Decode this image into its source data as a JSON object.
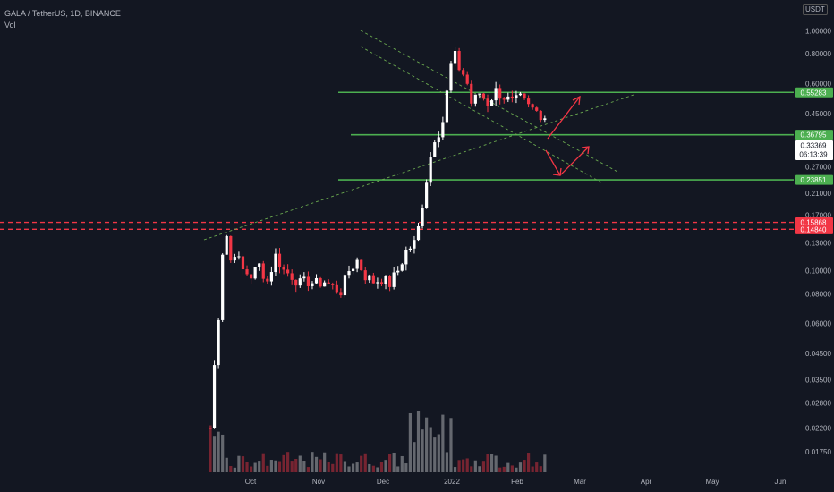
{
  "header": {
    "symbol": "GALA / TetherUS, 1D, BINANCE",
    "indicator": "Vol"
  },
  "axis": {
    "unit": "USDT",
    "price_ticks": [
      "1.00000",
      "0.80000",
      "0.60000",
      "0.45000",
      "0.37000",
      "0.27000",
      "0.21000",
      "0.17000",
      "0.13000",
      "0.10000",
      "0.08000",
      "0.06000",
      "0.04500",
      "0.03500",
      "0.02800",
      "0.02200",
      "0.01750"
    ],
    "time_ticks": [
      "Oct",
      "Nov",
      "Dec",
      "2022",
      "Feb",
      "Mar",
      "Apr",
      "May",
      "Jun"
    ]
  },
  "price_labels": [
    {
      "text": "0.55283",
      "color": "#4caf50"
    },
    {
      "text": "0.36795",
      "color": "#4caf50"
    },
    {
      "text": "0.33369",
      "sub": "06:13:39",
      "color": "#ffffff"
    },
    {
      "text": "0.23851",
      "color": "#4caf50"
    },
    {
      "text": "0.15868",
      "color": "#f23645"
    },
    {
      "text": "0.14840",
      "color": "#f23645"
    }
  ],
  "colors": {
    "background": "#131722",
    "up": "#ffffff",
    "down": "#f23645",
    "support": "#4caf50",
    "trend": "#6aa84f"
  },
  "chart_data": {
    "type": "candlestick",
    "symbol": "GALA / TetherUS",
    "interval": "1D",
    "exchange": "BINANCE",
    "y_scale": "log",
    "ylim": [
      0.0165,
      1.15
    ],
    "series": [
      {
        "period": "Sep",
        "trend": "listing spike from ~0.02 to ~0.14"
      },
      {
        "period": "Oct",
        "range": [
          0.075,
          0.12
        ]
      },
      {
        "period": "Nov",
        "trend": "breakout to ~0.80"
      },
      {
        "period": "Dec",
        "range": [
          0.4,
          0.6
        ]
      },
      {
        "period": "Jan",
        "trend": "decline to ~0.16"
      },
      {
        "period": "Feb",
        "trend": "recovery to ~0.37"
      }
    ],
    "last_price": 0.33369,
    "horizontal_levels": {
      "support_resistance": [
        0.55283,
        0.36795,
        0.23851
      ],
      "dashed": [
        0.15868,
        0.1484
      ]
    },
    "indicators": [
      "Vol"
    ]
  }
}
